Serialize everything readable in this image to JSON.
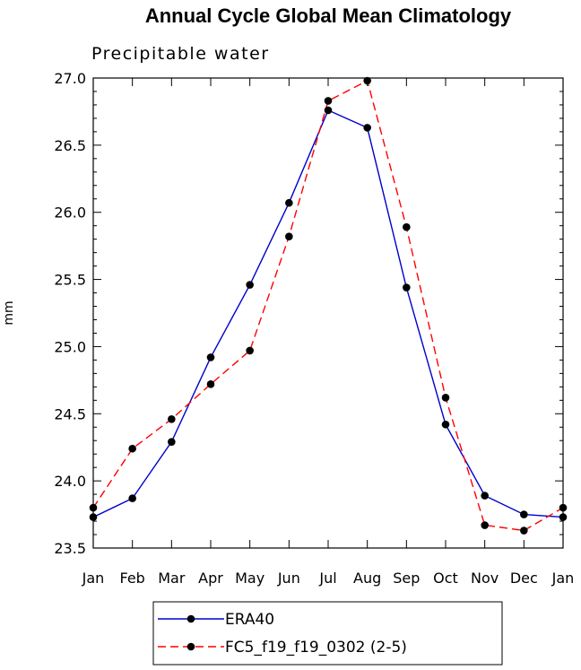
{
  "chart_data": {
    "type": "line",
    "title": "Annual Cycle Global Mean Climatology",
    "subtitle": "Precipitable water",
    "ylabel": "mm",
    "xlabel": "",
    "categories": [
      "Jan",
      "Feb",
      "Mar",
      "Apr",
      "May",
      "Jun",
      "Jul",
      "Aug",
      "Sep",
      "Oct",
      "Nov",
      "Dec",
      "Jan"
    ],
    "ylim": [
      23.5,
      27.0
    ],
    "yticks": [
      "23.5",
      "24.0",
      "24.5",
      "25.0",
      "25.5",
      "26.0",
      "26.5",
      "27.0"
    ],
    "grid": false,
    "legend_position": "bottom",
    "series": [
      {
        "name": "ERA40",
        "color": "#0000cc",
        "dash": "solid",
        "values": [
          23.73,
          23.87,
          24.29,
          24.92,
          25.46,
          26.07,
          26.76,
          26.63,
          25.44,
          24.42,
          23.89,
          23.75,
          23.73
        ]
      },
      {
        "name": "FC5_f19_f19_0302 (2-5)",
        "color": "#ff0000",
        "dash": "dashed",
        "values": [
          23.8,
          24.24,
          24.46,
          24.72,
          24.97,
          25.82,
          26.83,
          26.98,
          25.89,
          24.62,
          23.67,
          23.63,
          23.8
        ]
      }
    ]
  }
}
